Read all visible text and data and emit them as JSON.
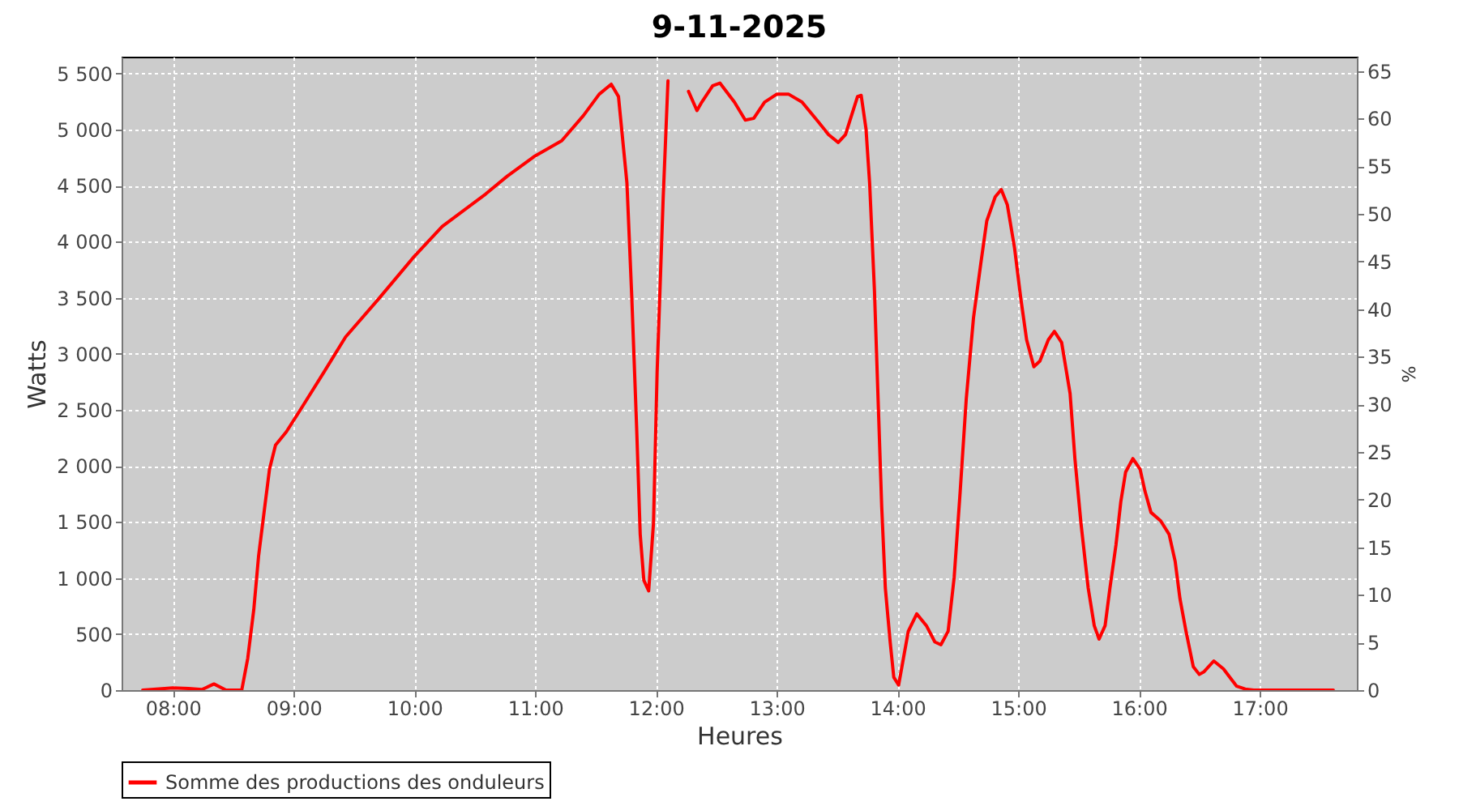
{
  "chart_data": {
    "type": "line",
    "title": "9-11-2025",
    "xlabel": "Heures",
    "ylabel": "Watts",
    "y2label": "%",
    "x": [
      7.75,
      8.0,
      8.13,
      8.24,
      8.34,
      8.44,
      8.57,
      8.62,
      8.67,
      8.71,
      8.76,
      8.8,
      8.85,
      8.94,
      9.07,
      9.25,
      9.43,
      9.7,
      10.0,
      10.23,
      10.59,
      10.77,
      11.0,
      11.22,
      11.4,
      11.53,
      11.63,
      11.69,
      11.76,
      11.8,
      11.84,
      11.87,
      11.9,
      11.94,
      11.98,
      12.01,
      12.06,
      12.1,
      12.11,
      12.16,
      12.22,
      12.27,
      12.34,
      12.38,
      12.47,
      12.53,
      12.65,
      12.74,
      12.81,
      12.9,
      13.0,
      13.1,
      13.21,
      13.34,
      13.43,
      13.51,
      13.57,
      13.67,
      13.7,
      13.74,
      13.77,
      13.81,
      13.84,
      13.87,
      13.9,
      13.94,
      13.97,
      14.01,
      14.05,
      14.09,
      14.16,
      14.24,
      14.31,
      14.36,
      14.42,
      14.47,
      14.52,
      14.57,
      14.63,
      14.69,
      14.74,
      14.81,
      14.86,
      14.91,
      14.97,
      15.02,
      15.07,
      15.13,
      15.18,
      15.25,
      15.3,
      15.36,
      15.43,
      15.47,
      15.52,
      15.58,
      15.63,
      15.67,
      15.72,
      15.76,
      15.81,
      15.85,
      15.89,
      15.95,
      16.01,
      16.05,
      16.1,
      16.18,
      16.25,
      16.3,
      16.34,
      16.39,
      16.45,
      16.5,
      16.54,
      16.62,
      16.7,
      16.77,
      16.81,
      16.88,
      16.95,
      17.61
    ],
    "series": [
      {
        "name": "Somme des productions des onduleurs",
        "color": "#ff0000",
        "values": [
          0,
          20,
          15,
          5,
          55,
          0,
          0,
          285,
          720,
          1200,
          1630,
          1970,
          2185,
          2305,
          2525,
          2835,
          3150,
          3485,
          3870,
          4135,
          4425,
          4585,
          4765,
          4900,
          5125,
          5315,
          5405,
          5295,
          4525,
          3510,
          2355,
          1390,
          980,
          885,
          1490,
          2835,
          4380,
          5435,
          null,
          null,
          null,
          5340,
          5170,
          5245,
          5390,
          5415,
          5245,
          5085,
          5100,
          5245,
          5315,
          5315,
          5245,
          5075,
          4955,
          4885,
          4955,
          5295,
          5305,
          5005,
          4520,
          3560,
          2595,
          1635,
          910,
          430,
          115,
          45,
          285,
          525,
          680,
          575,
          430,
          405,
          525,
          1005,
          1775,
          2595,
          3320,
          3800,
          4185,
          4400,
          4465,
          4330,
          3945,
          3510,
          3125,
          2885,
          2935,
          3125,
          3200,
          3100,
          2645,
          2065,
          1490,
          910,
          575,
          455,
          575,
          910,
          1295,
          1680,
          1945,
          2065,
          1970,
          1775,
          1585,
          1510,
          1390,
          1150,
          815,
          525,
          210,
          140,
          165,
          260,
          190,
          90,
          35,
          10,
          0,
          0
        ]
      }
    ],
    "xlim": [
      7.575,
      17.805
    ],
    "xticks": [
      {
        "value": 8,
        "label": "08:00"
      },
      {
        "value": 9,
        "label": "09:00"
      },
      {
        "value": 10,
        "label": "10:00"
      },
      {
        "value": 11,
        "label": "11:00"
      },
      {
        "value": 12,
        "label": "12:00"
      },
      {
        "value": 13,
        "label": "13:00"
      },
      {
        "value": 14,
        "label": "14:00"
      },
      {
        "value": 15,
        "label": "15:00"
      },
      {
        "value": 16,
        "label": "16:00"
      },
      {
        "value": 17,
        "label": "17:00"
      }
    ],
    "ylim": [
      0,
      5650
    ],
    "yticks": [
      {
        "value": 0,
        "label": "0"
      },
      {
        "value": 500,
        "label": "500"
      },
      {
        "value": 1000,
        "label": "1 000"
      },
      {
        "value": 1500,
        "label": "1 500"
      },
      {
        "value": 2000,
        "label": "2 000"
      },
      {
        "value": 2500,
        "label": "2 500"
      },
      {
        "value": 3000,
        "label": "3 000"
      },
      {
        "value": 3500,
        "label": "3 500"
      },
      {
        "value": 4000,
        "label": "4 000"
      },
      {
        "value": 4500,
        "label": "4 500"
      },
      {
        "value": 5000,
        "label": "5 000"
      },
      {
        "value": 5500,
        "label": "5 500"
      }
    ],
    "y2lim": [
      0,
      66.5
    ],
    "y2ticks": [
      0,
      5,
      10,
      15,
      20,
      25,
      30,
      35,
      40,
      45,
      50,
      55,
      60,
      65
    ],
    "grid": true,
    "legend": "bottom",
    "marker": "none",
    "line_style": "solid"
  }
}
